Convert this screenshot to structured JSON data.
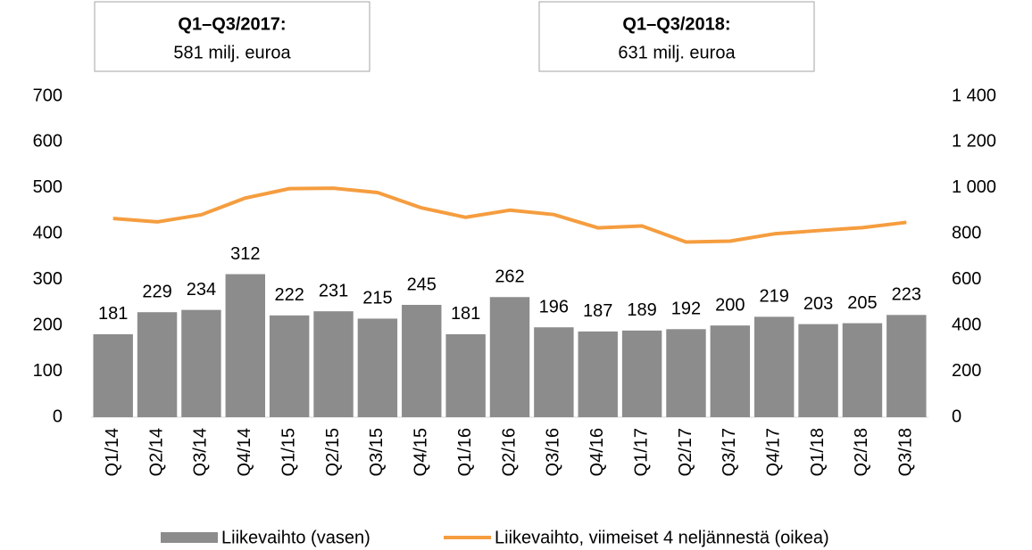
{
  "chart_data": {
    "type": "bar_line",
    "annotations": [
      {
        "title": "Q1–Q3/2017:",
        "text": "581 milj. euroa"
      },
      {
        "title": "Q1–Q3/2018:",
        "text": "631 milj. euroa"
      }
    ],
    "categories": [
      "Q1/14",
      "Q2/14",
      "Q3/14",
      "Q4/14",
      "Q1/15",
      "Q2/15",
      "Q3/15",
      "Q4/15",
      "Q1/16",
      "Q2/16",
      "Q3/16",
      "Q4/16",
      "Q1/17",
      "Q2/17",
      "Q3/17",
      "Q4/17",
      "Q1/18",
      "Q2/18",
      "Q3/18"
    ],
    "series": [
      {
        "name": "Liikevaihto (vasen)",
        "color": "#8c8c8c",
        "type": "bar",
        "values": [
          181,
          229,
          234,
          312,
          222,
          231,
          215,
          245,
          181,
          262,
          196,
          187,
          189,
          192,
          200,
          219,
          203,
          205,
          223
        ]
      },
      {
        "name": "Liikevaihto, viimeiset 4 neljännestä (oikea)",
        "color": "#f59d3f",
        "type": "line",
        "axis": "y2",
        "values": [
          867,
          852,
          883,
          956,
          997,
          999,
          980,
          913,
          872,
          903,
          884,
          826,
          834,
          764,
          768,
          800,
          814,
          827,
          850
        ]
      }
    ],
    "ylim": [
      0,
      700
    ],
    "yticks": [
      0,
      100,
      200,
      300,
      400,
      500,
      600,
      700
    ],
    "y2lim": [
      0,
      1400
    ],
    "y2ticks": [
      0,
      200,
      400,
      600,
      800,
      {
        "value": 1000,
        "label": "1 000"
      },
      {
        "value": 1200,
        "label": "1 200"
      },
      {
        "value": 1400,
        "label": "1 400"
      }
    ],
    "grid": false,
    "legend": "bottom"
  }
}
